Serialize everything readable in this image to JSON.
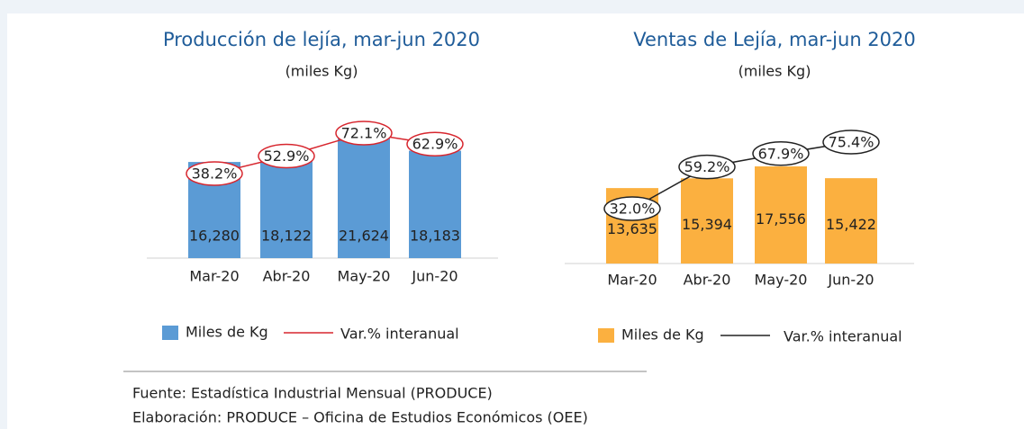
{
  "chart_data": [
    {
      "type": "bar",
      "title": "Producción de lejía, mar-jun 2020",
      "subtitle": "(miles Kg)",
      "categories": [
        "Mar-20",
        "Abr-20",
        "May-20",
        "Jun-20"
      ],
      "series": [
        {
          "name": "Miles de Kg",
          "type": "bar",
          "color": "#5b9bd5",
          "values": [
            16280,
            18122,
            21624,
            18183
          ],
          "value_labels": [
            "16,280",
            "18,122",
            "21,624",
            "18,183"
          ]
        },
        {
          "name": "Var.% interanual",
          "type": "line",
          "color": "#d7262e",
          "values": [
            38.2,
            52.9,
            72.1,
            62.9
          ],
          "value_labels": [
            "38.2%",
            "52.9%",
            "72.1%",
            "62.9%"
          ]
        }
      ]
    },
    {
      "type": "bar",
      "title": "Ventas de Lejía, mar-jun 2020",
      "subtitle": "(miles Kg)",
      "categories": [
        "Mar-20",
        "Abr-20",
        "May-20",
        "Jun-20"
      ],
      "series": [
        {
          "name": "Miles de Kg",
          "type": "bar",
          "color": "#fbb040",
          "values": [
            13635,
            15394,
            17556,
            15422
          ],
          "value_labels": [
            "13,635",
            "15,394",
            "17,556",
            "15,422"
          ]
        },
        {
          "name": "Var.% interanual",
          "type": "line",
          "color": "#222222",
          "values": [
            32.0,
            59.2,
            67.9,
            75.4
          ],
          "value_labels": [
            "32.0%",
            "59.2%",
            "67.9%",
            "75.4%"
          ]
        }
      ]
    }
  ],
  "source": [
    "Fuente: Estadística Industrial Mensual (PRODUCE)",
    "Elaboración: PRODUCE – Oficina de Estudios Económicos (OEE)"
  ]
}
